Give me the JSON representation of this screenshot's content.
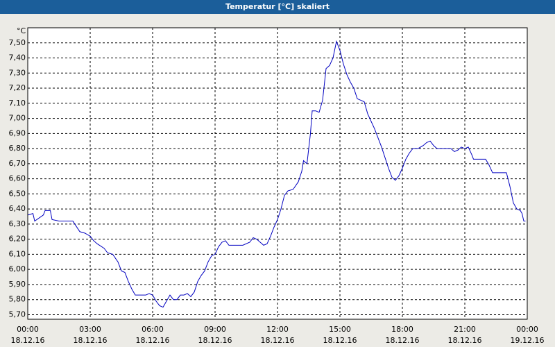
{
  "chart_data": {
    "type": "line",
    "title": "Temperatur [°C] skaliert",
    "y_unit": "°C",
    "x": [
      "18.12.16 00:00",
      "18.12.16 00:15",
      "18.12.16 00:20",
      "18.12.16 00:45",
      "18.12.16 00:50",
      "18.12.16 01:05",
      "18.12.16 01:10",
      "18.12.16 01:30",
      "18.12.16 02:00",
      "18.12.16 02:10",
      "18.12.16 02:30",
      "18.12.16 02:45",
      "18.12.16 03:00",
      "18.12.16 03:10",
      "18.12.16 03:20",
      "18.12.16 03:40",
      "18.12.16 03:50",
      "18.12.16 04:05",
      "18.12.16 04:20",
      "18.12.16 04:30",
      "18.12.16 04:40",
      "18.12.16 04:50",
      "18.12.16 05:00",
      "18.12.16 05:10",
      "18.12.16 05:30",
      "18.12.16 05:40",
      "18.12.16 05:50",
      "18.12.16 06:00",
      "18.12.16 06:10",
      "18.12.16 06:20",
      "18.12.16 06:30",
      "18.12.16 06:40",
      "18.12.16 06:50",
      "18.12.16 07:00",
      "18.12.16 07:10",
      "18.12.16 07:20",
      "18.12.16 07:30",
      "18.12.16 07:40",
      "18.12.16 07:50",
      "18.12.16 08:00",
      "18.12.16 08:10",
      "18.12.16 08:20",
      "18.12.16 08:30",
      "18.12.16 08:40",
      "18.12.16 08:50",
      "18.12.16 09:00",
      "18.12.16 09:10",
      "18.12.16 09:20",
      "18.12.16 09:30",
      "18.12.16 09:40",
      "18.12.16 10:00",
      "18.12.16 10:20",
      "18.12.16 10:40",
      "18.12.16 10:50",
      "18.12.16 11:00",
      "18.12.16 11:10",
      "18.12.16 11:20",
      "18.12.16 11:30",
      "18.12.16 11:40",
      "18.12.16 11:50",
      "18.12.16 12:00",
      "18.12.16 12:10",
      "18.12.16 12:20",
      "18.12.16 12:30",
      "18.12.16 12:45",
      "18.12.16 13:00",
      "18.12.16 13:10",
      "18.12.16 13:15",
      "18.12.16 13:25",
      "18.12.16 13:35",
      "18.12.16 13:40",
      "18.12.16 13:50",
      "18.12.16 14:00",
      "18.12.16 14:10",
      "18.12.16 14:20",
      "18.12.16 14:30",
      "18.12.16 14:40",
      "18.12.16 14:50",
      "18.12.16 15:00",
      "18.12.16 15:10",
      "18.12.16 15:20",
      "18.12.16 15:30",
      "18.12.16 15:40",
      "18.12.16 15:50",
      "18.12.16 16:00",
      "18.12.16 16:10",
      "18.12.16 16:20",
      "18.12.16 16:40",
      "18.12.16 17:00",
      "18.12.16 17:20",
      "18.12.16 17:30",
      "18.12.16 17:40",
      "18.12.16 17:50",
      "18.12.16 18:00",
      "18.12.16 18:10",
      "18.12.16 18:20",
      "18.12.16 18:30",
      "18.12.16 18:45",
      "18.12.16 19:00",
      "18.12.16 19:10",
      "18.12.16 19:20",
      "18.12.16 19:30",
      "18.12.16 19:40",
      "18.12.16 20:00",
      "18.12.16 20:20",
      "18.12.16 20:30",
      "18.12.16 20:40",
      "18.12.16 20:50",
      "18.12.16 21:00",
      "18.12.16 21:10",
      "18.12.16 21:20",
      "18.12.16 21:25",
      "18.12.16 21:40",
      "18.12.16 22:00",
      "18.12.16 22:10",
      "18.12.16 22:20",
      "18.12.16 22:40",
      "18.12.16 23:00",
      "18.12.16 23:10",
      "18.12.16 23:20",
      "18.12.16 23:30",
      "18.12.16 23:40",
      "18.12.16 23:45",
      "18.12.16 23:50",
      "18.12.16 23:55"
    ],
    "series": [
      {
        "color": "#0000c0",
        "values": [
          6.36,
          6.37,
          6.32,
          6.36,
          6.39,
          6.39,
          6.33,
          6.32,
          6.32,
          6.32,
          6.25,
          6.24,
          6.22,
          6.19,
          6.17,
          6.14,
          6.11,
          6.1,
          6.05,
          5.99,
          5.98,
          5.92,
          5.87,
          5.83,
          5.83,
          5.83,
          5.84,
          5.83,
          5.79,
          5.76,
          5.75,
          5.79,
          5.83,
          5.8,
          5.8,
          5.83,
          5.83,
          5.84,
          5.82,
          5.85,
          5.92,
          5.96,
          5.99,
          6.05,
          6.09,
          6.1,
          6.15,
          6.18,
          6.19,
          6.16,
          6.16,
          6.16,
          6.18,
          6.21,
          6.2,
          6.18,
          6.16,
          6.17,
          6.22,
          6.28,
          6.33,
          6.4,
          6.49,
          6.52,
          6.53,
          6.58,
          6.65,
          6.72,
          6.7,
          6.9,
          7.05,
          7.05,
          7.04,
          7.12,
          7.33,
          7.35,
          7.4,
          7.51,
          7.45,
          7.36,
          7.29,
          7.24,
          7.2,
          7.13,
          7.12,
          7.11,
          7.03,
          6.93,
          6.81,
          6.67,
          6.61,
          6.59,
          6.62,
          6.67,
          6.73,
          6.77,
          6.8,
          6.8,
          6.82,
          6.84,
          6.85,
          6.82,
          6.8,
          6.8,
          6.8,
          6.78,
          6.79,
          6.81,
          6.8,
          6.81,
          6.76,
          6.73,
          6.73,
          6.73,
          6.69,
          6.64,
          6.64,
          6.64,
          6.55,
          6.44,
          6.4,
          6.39,
          6.37,
          6.32,
          6.32
        ]
      }
    ],
    "xlim": [
      "18.12.16 00:00",
      "19.12.16 00:00"
    ],
    "xticks": [
      {
        "value": "18.12.16 00:00",
        "label": [
          "00:00",
          "18.12.16"
        ]
      },
      {
        "value": "18.12.16 03:00",
        "label": [
          "03:00",
          "18.12.16"
        ]
      },
      {
        "value": "18.12.16 06:00",
        "label": [
          "06:00",
          "18.12.16"
        ]
      },
      {
        "value": "18.12.16 09:00",
        "label": [
          "09:00",
          "18.12.16"
        ]
      },
      {
        "value": "18.12.16 12:00",
        "label": [
          "12:00",
          "18.12.16"
        ]
      },
      {
        "value": "18.12.16 15:00",
        "label": [
          "15:00",
          "18.12.16"
        ]
      },
      {
        "value": "18.12.16 18:00",
        "label": [
          "18:00",
          "18.12.16"
        ]
      },
      {
        "value": "18.12.16 21:00",
        "label": [
          "21:00",
          "18.12.16"
        ]
      },
      {
        "value": "19.12.16 00:00",
        "label": [
          "00:00",
          "19.12.16"
        ]
      }
    ],
    "ylim": [
      5.67,
      7.6
    ],
    "yticks": [
      {
        "value": 5.7,
        "label": "5,70"
      },
      {
        "value": 5.8,
        "label": "5,80"
      },
      {
        "value": 5.9,
        "label": "5,90"
      },
      {
        "value": 6.0,
        "label": "6,00"
      },
      {
        "value": 6.1,
        "label": "6,10"
      },
      {
        "value": 6.2,
        "label": "6,20"
      },
      {
        "value": 6.3,
        "label": "6,30"
      },
      {
        "value": 6.4,
        "label": "6,40"
      },
      {
        "value": 6.5,
        "label": "6,50"
      },
      {
        "value": 6.6,
        "label": "6,60"
      },
      {
        "value": 6.7,
        "label": "6,70"
      },
      {
        "value": 6.8,
        "label": "6,80"
      },
      {
        "value": 6.9,
        "label": "6,90"
      },
      {
        "value": 7.0,
        "label": "7,00"
      },
      {
        "value": 7.1,
        "label": "7,10"
      },
      {
        "value": 7.2,
        "label": "7,20"
      },
      {
        "value": 7.3,
        "label": "7,30"
      },
      {
        "value": 7.4,
        "label": "7,40"
      },
      {
        "value": 7.5,
        "label": "7,50"
      }
    ],
    "grid": true
  }
}
